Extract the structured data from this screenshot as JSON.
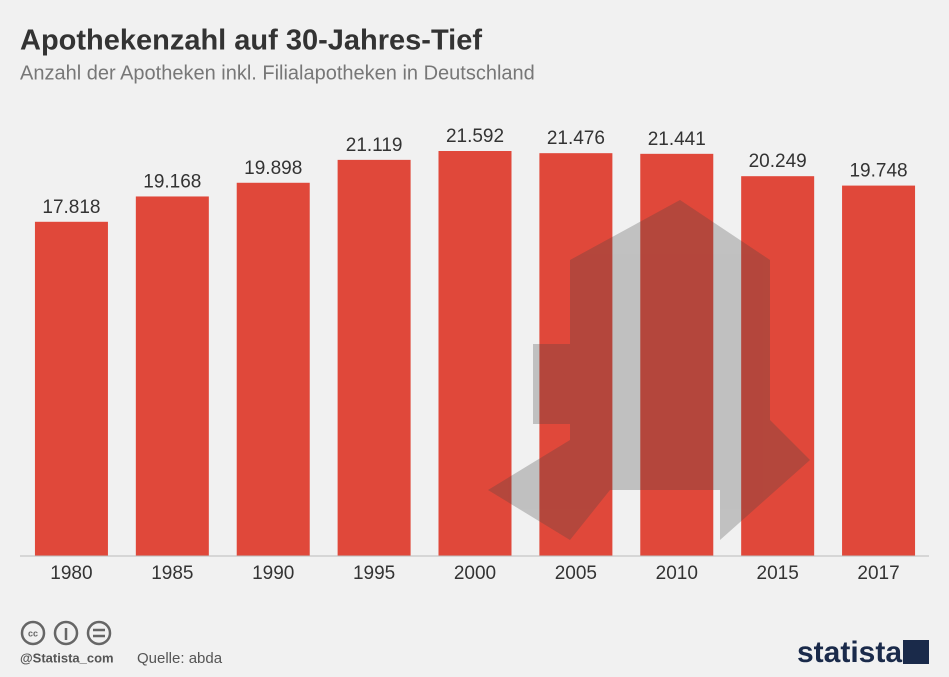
{
  "chart_data": {
    "type": "bar",
    "title": "Apothekenzahl auf 30-Jahres-Tief",
    "subtitle": "Anzahl der Apotheken inkl. Filialapotheken in Deutschland",
    "categories": [
      "1980",
      "1985",
      "1990",
      "1995",
      "2000",
      "2005",
      "2010",
      "2015",
      "2017"
    ],
    "values": [
      17818,
      19168,
      19898,
      21119,
      21592,
      21476,
      21441,
      20249,
      19748
    ],
    "value_labels": [
      "17.818",
      "19.168",
      "19.898",
      "21.119",
      "21.592",
      "21.476",
      "21.441",
      "20.249",
      "19.748"
    ],
    "color": "#e0483a"
  },
  "footer": {
    "handle": "@Statista_com",
    "source": "Quelle: abda",
    "logo": "statista"
  }
}
